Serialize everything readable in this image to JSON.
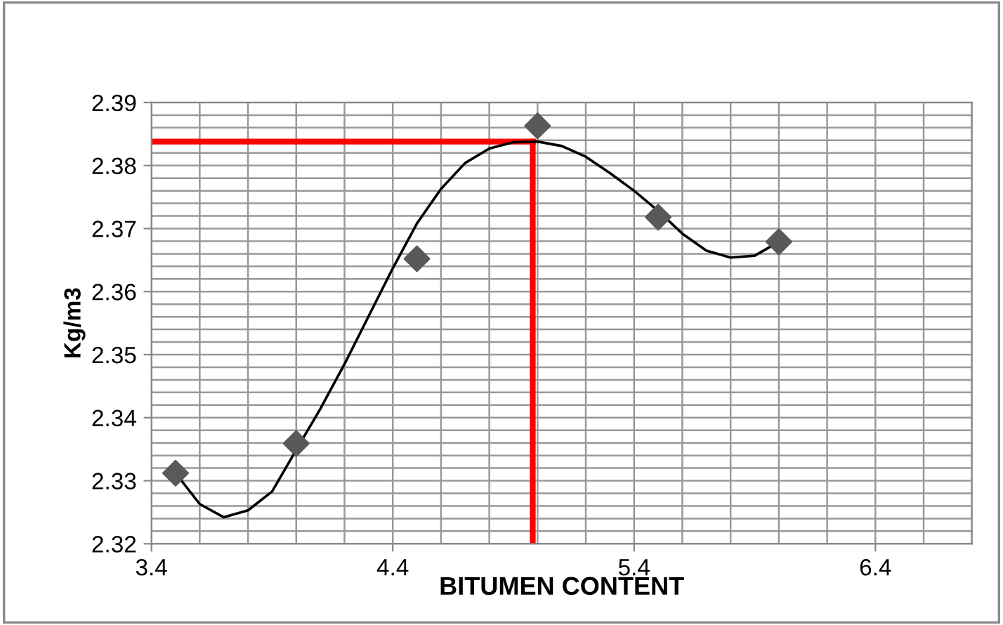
{
  "chart_data": {
    "type": "scatter",
    "xlabel": "BITUMEN CONTENT",
    "ylabel": "Kg/m3",
    "xlim": [
      3.4,
      6.8
    ],
    "xticks": [
      3.4,
      4.4,
      5.4,
      6.4
    ],
    "ylim": [
      2.32,
      2.39
    ],
    "yticks": [
      2.32,
      2.33,
      2.34,
      2.35,
      2.36,
      2.37,
      2.38,
      2.39
    ],
    "grid": true,
    "marker": "diamond",
    "series": [
      {
        "color": "#595959",
        "x": [
          3.5,
          4.0,
          4.5,
          5.0,
          5.5,
          6.0
        ],
        "values": [
          2.3312,
          2.3359,
          2.3652,
          2.3863,
          2.3718,
          2.3679
        ]
      },
      {
        "type": "line",
        "color": "#000000",
        "marker": "none",
        "x": [
          3.5,
          3.6,
          3.7,
          3.8,
          3.9,
          4.0,
          4.1,
          4.2,
          4.3,
          4.4,
          4.5,
          4.6,
          4.7,
          4.8,
          4.9,
          5.0,
          5.1,
          5.2,
          5.3,
          5.4,
          5.5,
          5.6,
          5.7,
          5.8,
          5.9,
          6.0
        ],
        "values": [
          2.3312,
          2.3263,
          2.3242,
          2.3253,
          2.3283,
          2.3349,
          2.3414,
          2.3485,
          2.3561,
          2.3637,
          2.3708,
          2.3763,
          2.3804,
          2.3827,
          2.3837,
          2.3838,
          2.3831,
          2.3814,
          2.3788,
          2.376,
          2.3728,
          2.3692,
          2.3665,
          2.3654,
          2.3657,
          2.3679
        ]
      }
    ],
    "ref_lines": [
      {
        "axis": "y",
        "value": 2.3838,
        "color": "#ff0000"
      },
      {
        "axis": "x",
        "value": 4.98,
        "color": "#ff0000"
      }
    ]
  }
}
